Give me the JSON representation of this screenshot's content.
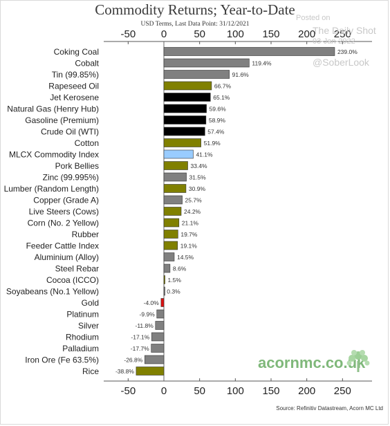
{
  "title": "Commodity Returns; Year-to-Date",
  "subtitle": "USD Terms, Last Data Point: 31/12/2021",
  "watermark": {
    "posted": "Posted on",
    "site": "The Daily Shot",
    "date": "03-Jan-2022",
    "handle": "@SoberLook"
  },
  "brand": "acornmc.co.uk",
  "source": "Source: Refinitiv Datastream, Acorn MC Ltd",
  "colors": {
    "grey": "#808080",
    "olive": "#808000",
    "black": "#000000",
    "blue": "#99ccff",
    "red": "#dd1111"
  },
  "chart_data": {
    "type": "bar",
    "orientation": "horizontal",
    "xlim": [
      -50,
      250
    ],
    "ticks": [
      -50,
      0,
      50,
      100,
      150,
      200,
      250
    ],
    "tick_labels": [
      "-50",
      "0",
      "50",
      "100",
      "150",
      "200",
      "250"
    ],
    "xlabel": "",
    "ylabel": "",
    "grid": false,
    "axis_labels_top_and_bottom": true,
    "categories": [
      "Coking Coal",
      "Cobalt",
      "Tin (99.85%)",
      "Rapeseed Oil",
      "Jet  Kerosene",
      "Natural Gas (Henry Hub)",
      "Gasoline (Premium)",
      "Crude Oil (WTI)",
      "Cotton",
      "MLCX Commodity Index",
      "Pork Bellies",
      "Zinc (99.995%)",
      "Lumber (Random Length)",
      "Copper (Grade A)",
      "Live Steers (Cows)",
      "Corn (No. 2 Yellow)",
      "Rubber",
      "Feeder Cattle Index",
      "Aluminium (Alloy)",
      "Steel Rebar",
      "Cocoa (ICCO)",
      "Soyabeans (No.1 Yellow)",
      "Gold",
      "Platinum",
      "Silver",
      "Rhodium",
      "Palladium",
      "Iron Ore (Fe 63.5%)",
      "Rice"
    ],
    "values": [
      239.0,
      119.4,
      91.6,
      66.7,
      65.1,
      59.6,
      58.9,
      57.4,
      51.9,
      41.1,
      33.4,
      31.5,
      30.9,
      25.7,
      24.2,
      21.1,
      19.7,
      19.1,
      14.5,
      8.6,
      1.5,
      0.3,
      -4.0,
      -9.9,
      -11.8,
      -17.1,
      -17.7,
      -26.8,
      -38.8
    ],
    "labels": [
      "239.0%",
      "119.4%",
      "91.6%",
      "66.7%",
      "65.1%",
      "59.6%",
      "58.9%",
      "57.4%",
      "51.9%",
      "41.1%",
      "33.4%",
      "31.5%",
      "30.9%",
      "25.7%",
      "24.2%",
      "21.1%",
      "19.7%",
      "19.1%",
      "14.5%",
      "8.6%",
      "1.5%",
      "0.3%",
      "-4.0%",
      "-9.9%",
      "-11.8%",
      "-17.1%",
      "-17.7%",
      "-26.8%",
      "-38.8%"
    ],
    "bar_colors": [
      "grey",
      "grey",
      "grey",
      "olive",
      "black",
      "black",
      "black",
      "black",
      "olive",
      "blue",
      "olive",
      "grey",
      "olive",
      "grey",
      "olive",
      "olive",
      "olive",
      "olive",
      "grey",
      "grey",
      "olive",
      "grey",
      "red",
      "grey",
      "grey",
      "grey",
      "grey",
      "grey",
      "olive"
    ]
  }
}
